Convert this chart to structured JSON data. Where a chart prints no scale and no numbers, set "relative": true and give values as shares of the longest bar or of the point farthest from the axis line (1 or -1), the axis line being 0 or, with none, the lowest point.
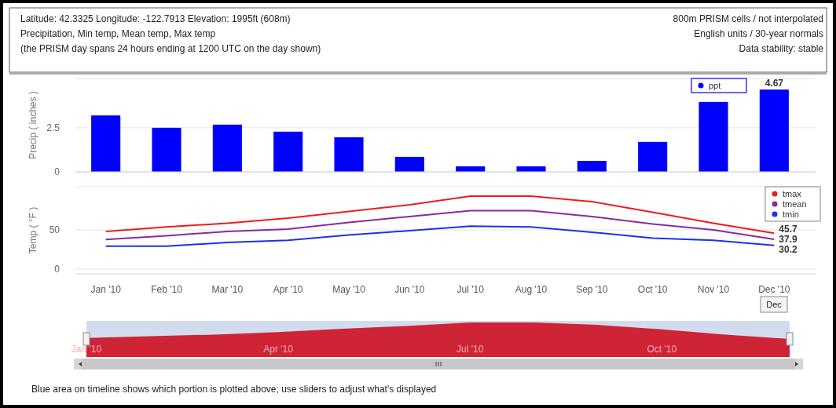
{
  "chart_data": [
    {
      "type": "bar",
      "title": "Latitude: 42.3325   Longitude: -122.7913   Elevation: 1995ft (608m)",
      "subtitle": "Precipitation, Min temp, Mean temp, Max temp",
      "annotations": [
        "(the PRISM day spans 24 hours ending at 1200 UTC on the day shown)",
        "800m PRISM cells / not interpolated",
        "English units / 30-year normals",
        "Data stability: stable",
        "Blue area on timeline shows which portion is plotted above; use sliders to adjust what's displayed"
      ],
      "ylabel": "Precip ( inches )",
      "categories": [
        null,
        null,
        null,
        null,
        null,
        null,
        null,
        null,
        null,
        null,
        null,
        null
      ],
      "tick_labels": "y",
      "ylim": [
        0,
        5.3
      ],
      "yticks": [
        0,
        2.5
      ],
      "grid": "y",
      "legend": "top right",
      "series": [
        {
          "name": "ppt",
          "color": "#0000ff",
          "values": [
            3.2,
            2.5,
            2.68,
            2.28,
            1.96,
            0.85,
            0.31,
            0.31,
            0.62,
            1.7,
            3.97,
            4.67
          ],
          "value_labels": [
            null,
            null,
            null,
            null,
            null,
            null,
            null,
            null,
            null,
            null,
            null,
            "4.67"
          ]
        }
      ]
    },
    {
      "type": "line",
      "ylabel": "Temp ( °F )",
      "categories": [
        "Jan '10",
        "Feb '10",
        "Mar '10",
        "Apr '10",
        "May '10",
        "Jun '10",
        "Jul '10",
        "Aug '10",
        "Sep '10",
        "Oct '10",
        "Nov '10",
        "Dec '10"
      ],
      "ylim": [
        -6,
        105
      ],
      "yticks": [
        0,
        50
      ],
      "grid": "y",
      "legend": "top right",
      "marker": "none",
      "line_style": "solid",
      "annotations": [
        "Dec"
      ],
      "series": [
        {
          "name": "tmax",
          "color": "#ee1c1c",
          "values": [
            48,
            53.8,
            58.5,
            65,
            73.6,
            82,
            93,
            93,
            86,
            72.6,
            58.5,
            45.7
          ],
          "value_labels": [
            null,
            null,
            null,
            null,
            null,
            null,
            null,
            null,
            null,
            null,
            null,
            "45.7"
          ]
        },
        {
          "name": "tmean",
          "color": "#8a2a9e",
          "values": [
            37.7,
            42.5,
            48,
            51,
            59.4,
            67,
            74.5,
            74.5,
            67,
            57.5,
            50,
            37.9
          ],
          "value_labels": [
            null,
            null,
            null,
            null,
            null,
            null,
            null,
            null,
            null,
            null,
            null,
            "37.9"
          ]
        },
        {
          "name": "tmin",
          "color": "#1f2ff0",
          "values": [
            29.2,
            29.2,
            34,
            36.8,
            43.4,
            49,
            54.7,
            53.8,
            47,
            39.6,
            36.8,
            30.2
          ],
          "value_labels": [
            null,
            null,
            null,
            null,
            null,
            null,
            null,
            null,
            null,
            null,
            null,
            "30.2"
          ]
        }
      ]
    },
    {
      "type": "area",
      "relative": true,
      "categories": [
        "Jan '10",
        null,
        null,
        "Apr '10",
        null,
        null,
        "Jul '10",
        null,
        null,
        "Oct '10",
        null,
        null
      ],
      "series": [
        {
          "color": "#cf2435",
          "values": [
            0.55,
            0.6,
            0.65,
            0.72,
            0.82,
            0.9,
            1,
            1,
            0.93,
            0.8,
            0.65,
            0.52
          ]
        }
      ]
    }
  ]
}
